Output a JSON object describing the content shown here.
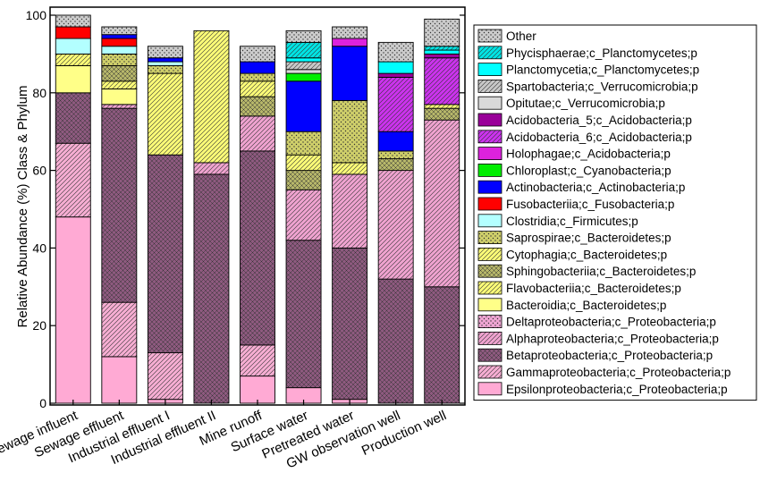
{
  "chart_data": {
    "type": "bar",
    "stacked": true,
    "ylabel": "Relative Abundance (%) Class & Phylum",
    "ylim": [
      0,
      100
    ],
    "yticks": [
      0,
      20,
      40,
      60,
      80,
      100
    ],
    "categories": [
      "Sewage influent",
      "Sewage effluent",
      "Industrial effluent I",
      "Industrial effluent II",
      "Mine runoff",
      "Surface water",
      "Pretreated water",
      "GW observation well",
      "Production well"
    ],
    "legend_position": "right",
    "series": [
      {
        "name": "Epsilonproteobacteria;c_Proteobacteria;p",
        "color": "#ffaad4",
        "pattern": "solid",
        "values": [
          48,
          12,
          1,
          0,
          7,
          4,
          1,
          0,
          0
        ]
      },
      {
        "name": "Gammaproteobacteria;c_Proteobacteria;p",
        "color": "#f7aed3",
        "pattern": "diag",
        "values": [
          19,
          14,
          12,
          0,
          8,
          0,
          0,
          0,
          0
        ]
      },
      {
        "name": "Betaproteobacteria;c_Proteobacteria;p",
        "color": "#8e5a7f",
        "pattern": "cross",
        "values": [
          13,
          50,
          51,
          59,
          50,
          38,
          39,
          32,
          30
        ]
      },
      {
        "name": "Alphaproteobacteria;c_Proteobacteria;p",
        "color": "#f0a3d0",
        "pattern": "diag",
        "values": [
          0,
          1,
          0,
          3,
          9,
          13,
          19,
          28,
          43
        ]
      },
      {
        "name": "Deltaproteobacteria;c_Proteobacteria;p",
        "color": "#efa5d3",
        "pattern": "dots",
        "values": [
          0,
          0,
          0,
          0,
          0,
          0,
          0,
          0,
          0
        ]
      },
      {
        "name": "Bacteroidia;c_Bacteroidetes;p",
        "color": "#ffff88",
        "pattern": "solid",
        "values": [
          7,
          4,
          0,
          0,
          0,
          0,
          0,
          0,
          0
        ]
      },
      {
        "name": "Flavobacteriia;c_Bacteroidetes;p",
        "color": "#fbfb77",
        "pattern": "diag",
        "values": [
          3,
          2,
          0,
          0,
          0,
          0,
          0,
          0,
          0
        ]
      },
      {
        "name": "Sphingobacteriia;c_Bacteroidetes;p",
        "color": "#b7b76a",
        "pattern": "cross",
        "values": [
          0,
          4,
          0,
          0,
          5,
          5,
          0,
          3,
          3
        ]
      },
      {
        "name": "Cytophagia;c_Bacteroidetes;p",
        "color": "#fbfb77",
        "pattern": "diag",
        "values": [
          0,
          0,
          21,
          34,
          4,
          4,
          3,
          0,
          1
        ]
      },
      {
        "name": "Saprospirae;c_Bacteroidetes;p",
        "color": "#cfcf6a",
        "pattern": "dots",
        "values": [
          0,
          3,
          2,
          0,
          2,
          6,
          16,
          2,
          0
        ]
      },
      {
        "name": "Clostridia;c_Firmicutes;p",
        "color": "#b3ffff",
        "pattern": "solid",
        "values": [
          4,
          2,
          1,
          0,
          0,
          0,
          0,
          0,
          0
        ]
      },
      {
        "name": "Fusobacteriia;c_Fusobacteria;p",
        "color": "#ff0000",
        "pattern": "solid",
        "values": [
          3,
          2,
          0,
          0,
          0,
          0,
          0,
          0,
          0
        ]
      },
      {
        "name": "Actinobacteria;c_Actinobacteria;p",
        "color": "#0000ff",
        "pattern": "solid",
        "values": [
          0,
          1,
          1,
          0,
          3,
          13,
          14,
          5,
          0
        ]
      },
      {
        "name": "Chloroplast;c_Cyanobacteria;p",
        "color": "#00ee00",
        "pattern": "solid",
        "values": [
          0,
          0,
          0,
          0,
          0,
          2,
          0,
          0,
          0
        ]
      },
      {
        "name": "Holophagae;c_Acidobacteria;p",
        "color": "#dd22dd",
        "pattern": "solid",
        "values": [
          0,
          0,
          0,
          0,
          0,
          0,
          2,
          0,
          0
        ]
      },
      {
        "name": "Acidobacteria_6;c_Acidobacteria;p",
        "color": "#cc33ee",
        "pattern": "diag",
        "values": [
          0,
          0,
          0,
          0,
          0,
          0,
          0,
          14,
          12
        ]
      },
      {
        "name": "Acidobacteria_5;c_Acidobacteria;p",
        "color": "#990099",
        "pattern": "solid",
        "values": [
          0,
          0,
          0,
          0,
          0,
          0,
          0,
          1,
          1
        ]
      },
      {
        "name": "Opitutae;c_Verrucomicrobia;p",
        "color": "#d9d9d9",
        "pattern": "solid",
        "values": [
          0,
          0,
          0,
          0,
          0,
          1,
          0,
          0,
          0
        ]
      },
      {
        "name": "Spartobacteria;c_Verrucomicrobia;p",
        "color": "#c8c8c8",
        "pattern": "diag",
        "values": [
          0,
          0,
          0,
          0,
          0,
          2,
          0,
          0,
          0
        ]
      },
      {
        "name": "Planctomycetia;c_Planctomycetes;p",
        "color": "#00ffff",
        "pattern": "solid",
        "values": [
          0,
          0,
          0,
          0,
          0,
          1,
          0,
          3,
          1
        ]
      },
      {
        "name": "Phycisphaerae;c_Planctomycetes;p",
        "color": "#00e5e5",
        "pattern": "diag",
        "values": [
          0,
          0,
          0,
          0,
          0,
          4,
          0,
          0,
          1
        ]
      },
      {
        "name": "Other",
        "color": "#cccccc",
        "pattern": "dots",
        "values": [
          3,
          2,
          3,
          0,
          4,
          3,
          3,
          5,
          7
        ]
      }
    ]
  }
}
